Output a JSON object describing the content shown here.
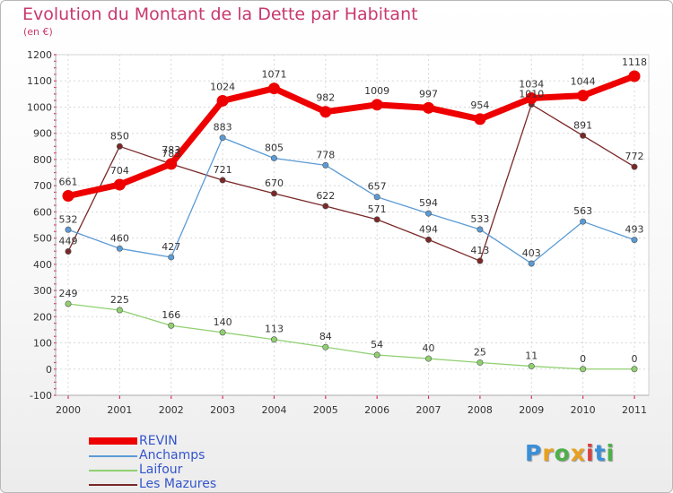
{
  "header": {
    "title": "Evolution du Montant de la Dette par Habitant",
    "subtitle": "(en €)"
  },
  "logo": {
    "text": "Proxiti",
    "colors": [
      "#3a8fd8",
      "#e8a020",
      "#4db04a",
      "#e8a020",
      "#d84040",
      "#3a8fd8",
      "#4db04a"
    ]
  },
  "chart_data": {
    "type": "line",
    "title": "Evolution du Montant de la Dette par Habitant",
    "subtitle": "(en €)",
    "xlabel": "",
    "ylabel": "",
    "x": [
      "2000",
      "2001",
      "2002",
      "2003",
      "2004",
      "2005",
      "2006",
      "2007",
      "2008",
      "2009",
      "2010",
      "2011"
    ],
    "ylim": [
      -100,
      1200
    ],
    "yticks": [
      -100,
      0,
      100,
      200,
      300,
      400,
      500,
      600,
      700,
      800,
      900,
      1000,
      1100,
      1200
    ],
    "grid": true,
    "legend": "bottom-left",
    "series": [
      {
        "name": "REVIN",
        "color": "#ee0000",
        "values": [
          661,
          704,
          783,
          1024,
          1071,
          982,
          1009,
          997,
          954,
          1034,
          1044,
          1118
        ],
        "labels": [
          "661",
          "704",
          "783",
          "1024",
          "1071",
          "982",
          "1009",
          "997",
          "954",
          "1034",
          "1044",
          "1118"
        ]
      },
      {
        "name": "Anchamps",
        "color": "#5b9bd5",
        "values": [
          532,
          460,
          427,
          883,
          805,
          778,
          657,
          594,
          533,
          403,
          563,
          493
        ],
        "labels": [
          "532",
          "460",
          "427",
          "883",
          "805",
          "778",
          "657",
          "594",
          "533",
          "403",
          "563",
          "493"
        ]
      },
      {
        "name": "Laifour",
        "color": "#90d070",
        "values": [
          249,
          225,
          166,
          140,
          113,
          84,
          54,
          40,
          25,
          11,
          0,
          0
        ],
        "labels": [
          "249",
          "225",
          "166",
          "140",
          "113",
          "84",
          "54",
          "40",
          "25",
          "11",
          "0",
          "0"
        ]
      },
      {
        "name": "Les Mazures",
        "color": "#7a2828",
        "values": [
          449,
          850,
          783,
          721,
          670,
          622,
          571,
          494,
          413,
          1010,
          891,
          772
        ],
        "labels": [
          "449",
          "850",
          "783",
          "721",
          "670",
          "622",
          "571",
          "494",
          "413",
          "1010",
          "891",
          "772"
        ]
      }
    ]
  }
}
